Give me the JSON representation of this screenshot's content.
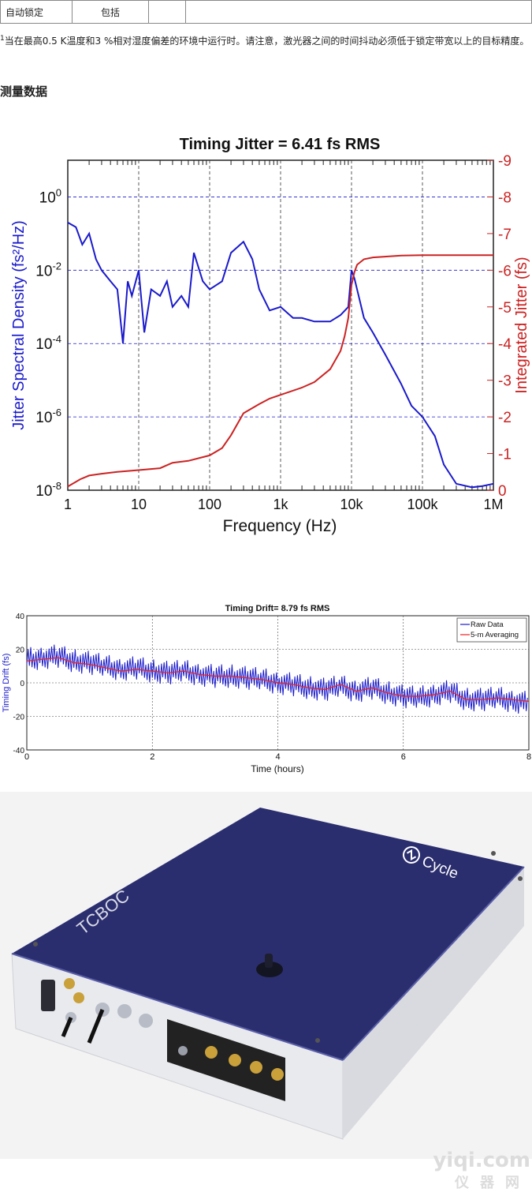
{
  "table": {
    "row": [
      "自动锁定",
      "包括",
      "",
      ""
    ]
  },
  "footnote": {
    "marker": "1",
    "text": "当在最高0.5 K温度和3 %相对湿度偏差的环境中运行时。请注意，激光器之间的时间抖动必须低于锁定带宽以上的目标精度。"
  },
  "section_heading": "测量数据",
  "chart_data": [
    {
      "type": "line",
      "title": "Timing Jitter =  6.41 fs RMS",
      "xlabel": "Frequency (Hz)",
      "ylabel_left": "Jitter Spectral Density (fs²/Hz)",
      "ylabel_right": "Integrated Jitter (fs)",
      "x_scale": "log",
      "xlim": [
        1,
        1000000
      ],
      "x_ticks": [
        "1",
        "10",
        "100",
        "1k",
        "10k",
        "100k",
        "1M"
      ],
      "y_left_scale": "log",
      "y_left_lim": [
        1e-08,
        10
      ],
      "y_left_ticks": [
        "10-8",
        "10-6",
        "10-4",
        "10-2",
        "100"
      ],
      "y_right_lim": [
        0,
        9
      ],
      "y_right_ticks": [
        "0",
        "1",
        "2",
        "3",
        "4",
        "5",
        "6",
        "7",
        "8",
        "9"
      ],
      "grid": true,
      "colors": {
        "density": "#1a1acc",
        "integrated": "#cc2222"
      },
      "series": [
        {
          "axis": "left",
          "x": [
            1,
            1.3,
            1.6,
            2,
            2.5,
            3,
            4,
            5,
            6,
            7,
            8,
            10,
            12,
            15,
            20,
            25,
            30,
            40,
            50,
            60,
            80,
            100,
            150,
            200,
            300,
            400,
            500,
            700,
            1000,
            1500,
            2000,
            3000,
            5000,
            7000,
            9000,
            10000,
            11000,
            15000,
            20000,
            30000,
            50000,
            70000,
            100000,
            150000,
            200000,
            300000,
            500000,
            700000,
            1000000
          ],
          "y": [
            0.2,
            0.15,
            0.05,
            0.1,
            0.02,
            0.01,
            0.005,
            0.003,
            0.0001,
            0.005,
            0.002,
            0.01,
            0.0002,
            0.003,
            0.002,
            0.005,
            0.001,
            0.002,
            0.001,
            0.03,
            0.005,
            0.003,
            0.005,
            0.03,
            0.06,
            0.02,
            0.003,
            0.0008,
            0.001,
            0.0005,
            0.0005,
            0.0004,
            0.0004,
            0.0006,
            0.001,
            0.01,
            0.006,
            0.0005,
            0.0002,
            5e-05,
            8e-06,
            2e-06,
            1e-06,
            3e-07,
            5e-08,
            1.5e-08,
            1.2e-08,
            1.3e-08,
            1.5e-08
          ]
        },
        {
          "axis": "right",
          "x": [
            1,
            1.5,
            2,
            3,
            5,
            10,
            20,
            30,
            50,
            100,
            150,
            200,
            300,
            500,
            700,
            1000,
            2000,
            3000,
            5000,
            7000,
            8000,
            9000,
            10000,
            11000,
            12000,
            15000,
            20000,
            50000,
            100000,
            1000000
          ],
          "y": [
            0.1,
            0.3,
            0.4,
            0.45,
            0.5,
            0.55,
            0.6,
            0.75,
            0.8,
            0.95,
            1.15,
            1.5,
            2.1,
            2.35,
            2.5,
            2.6,
            2.8,
            2.95,
            3.3,
            3.8,
            4.2,
            4.7,
            5.6,
            5.95,
            6.15,
            6.3,
            6.35,
            6.4,
            6.41,
            6.41
          ]
        }
      ]
    },
    {
      "type": "line",
      "title": "Timing Drift=  8.79 fs RMS",
      "xlabel": "Time (hours)",
      "ylabel": "Timing Drift (fs)",
      "xlim": [
        0,
        8
      ],
      "ylim": [
        -40,
        40
      ],
      "x_ticks": [
        "0",
        "2",
        "4",
        "6",
        "8"
      ],
      "y_ticks": [
        "-40",
        "-20",
        "0",
        "20",
        "40"
      ],
      "grid": true,
      "legend_placement": "top-right",
      "series": [
        {
          "name": "Raw Data",
          "color": "#1a1acc",
          "x": [
            0,
            0.25,
            0.5,
            0.75,
            1,
            1.25,
            1.5,
            1.75,
            2,
            2.25,
            2.5,
            2.75,
            3,
            3.25,
            3.5,
            3.75,
            4,
            4.25,
            4.5,
            4.75,
            5,
            5.25,
            5.5,
            5.75,
            6,
            6.25,
            6.5,
            6.75,
            7,
            7.25,
            7.5,
            7.75,
            8
          ],
          "y": [
            14,
            15,
            16,
            13,
            12,
            10,
            8,
            9,
            7,
            6,
            7,
            5,
            4,
            4,
            3,
            2,
            0,
            -1,
            -3,
            -4,
            -2,
            -5,
            -3,
            -6,
            -8,
            -9,
            -7,
            -5,
            -10,
            -10,
            -9,
            -11,
            -12
          ]
        },
        {
          "name": "5-m Averaging",
          "color": "#ee2222",
          "x": [
            0,
            0.25,
            0.5,
            0.75,
            1,
            1.25,
            1.5,
            1.75,
            2,
            2.25,
            2.5,
            2.75,
            3,
            3.25,
            3.5,
            3.75,
            4,
            4.25,
            4.5,
            4.75,
            5,
            5.25,
            5.5,
            5.75,
            6,
            6.25,
            6.5,
            6.75,
            7,
            7.25,
            7.5,
            7.75,
            8
          ],
          "y": [
            13,
            14,
            15,
            12,
            11,
            9,
            7,
            8,
            7,
            6,
            7,
            5,
            4,
            4,
            3,
            2,
            0,
            -1,
            -3,
            -4,
            -1,
            -5,
            -3,
            -6,
            -8,
            -8,
            -7,
            -5,
            -10,
            -10,
            -9,
            -10,
            -11
          ]
        }
      ]
    }
  ],
  "product": {
    "brand": "Cycle",
    "model_label": "TCBOC",
    "body_color": "#2b2e6e"
  },
  "watermark": {
    "line1": "yiqi.com",
    "line2": "仪器网"
  }
}
